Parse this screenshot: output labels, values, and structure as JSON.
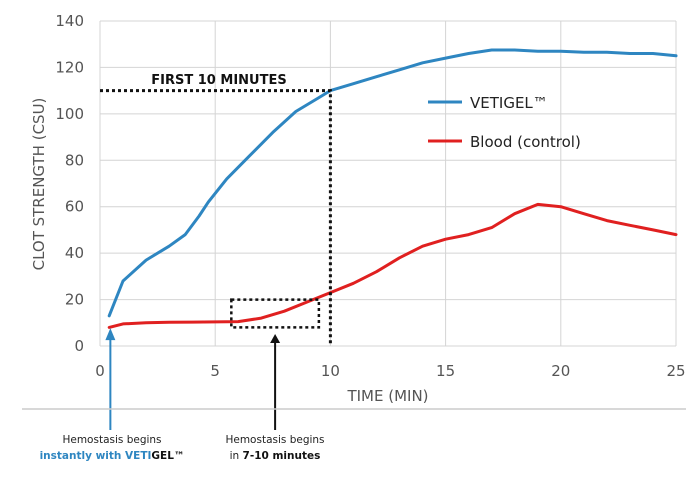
{
  "chart_data": {
    "type": "line",
    "title": "",
    "xlabel": "TIME (MIN)",
    "ylabel": "CLOT STRENGTH (CSU)",
    "xlim": [
      0,
      25
    ],
    "ylim": [
      0,
      140
    ],
    "xticks": [
      0,
      5,
      10,
      15,
      20,
      25
    ],
    "yticks": [
      0,
      20,
      40,
      60,
      80,
      100,
      120,
      140
    ],
    "grid": true,
    "legend": "right",
    "series": [
      {
        "name": "VETIGEL™",
        "color": "#2e86c1",
        "x": [
          0.4,
          1.0,
          2.0,
          3.0,
          3.7,
          4.3,
          4.7,
          5.5,
          6.5,
          7.5,
          8.5,
          9.5,
          10.0,
          11.0,
          12.0,
          13.0,
          14.0,
          15.0,
          16.0,
          17.0,
          18.0,
          19.0,
          20.0,
          21.0,
          22.0,
          23.0,
          24.0,
          25.0
        ],
        "y": [
          13,
          28,
          37,
          43,
          48,
          56,
          62,
          72,
          82,
          92,
          101,
          107,
          110,
          113,
          116,
          119,
          122,
          124,
          126,
          127.5,
          127.5,
          127,
          127,
          126.5,
          126.5,
          126,
          126,
          125
        ]
      },
      {
        "name": "Blood (control)",
        "color": "#e02020",
        "x": [
          0.4,
          1.0,
          2.0,
          3.0,
          4.0,
          5.0,
          6.0,
          7.0,
          8.0,
          9.0,
          10.0,
          11.0,
          12.0,
          13.0,
          14.0,
          15.0,
          16.0,
          17.0,
          18.0,
          19.0,
          20.0,
          21.0,
          22.0,
          23.0,
          24.0,
          25.0
        ],
        "y": [
          8,
          9.5,
          10,
          10.2,
          10.3,
          10.4,
          10.5,
          12,
          15,
          19,
          23,
          27,
          32,
          38,
          43,
          46,
          48,
          51,
          57,
          61,
          60,
          57,
          54,
          52,
          50,
          48
        ]
      }
    ],
    "annotations": {
      "first_minutes_label": "FIRST 10 MINUTES",
      "first_minutes_x": 10,
      "first_minutes_y": 110,
      "box_x_range": [
        5.7,
        9.5
      ],
      "box_y_range": [
        8,
        20
      ],
      "blue_arrow_x": 0.45,
      "black_arrow_x": 7.6
    }
  },
  "notes": {
    "left_line1": "Hemostasis begins",
    "left_line2_blue": "instantly with VETI",
    "left_line2_dark": "GEL™",
    "right_line1": "Hemostasis begins",
    "right_line2_prefix": "in ",
    "right_line2_bold": "7-10 minutes"
  }
}
